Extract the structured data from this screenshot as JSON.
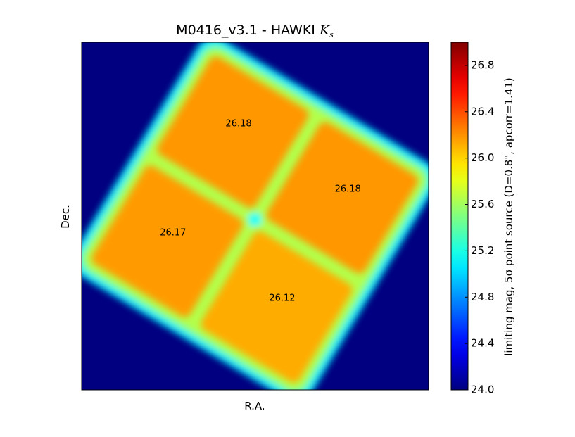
{
  "chart_data": {
    "type": "heatmap",
    "title": "M0416_v3.1 - HAWKI",
    "title_symbol": "K",
    "title_subscript": "s",
    "x_label": "R.A.",
    "y_label": "Dec.",
    "colorbar_label": "limiting mag, 5σ point source (D=0.8\", apcorr=1.41)",
    "colormap": "jet",
    "clim": [
      24.0,
      27.0
    ],
    "cticks": [
      {
        "value": 24.0,
        "label": "24.0"
      },
      24.4,
      24.8,
      25.2,
      25.6,
      {
        "value": 26.0,
        "label": "26.0"
      },
      26.4,
      26.8
    ],
    "chips": {
      "values": [
        26.18,
        26.18,
        26.17,
        26.12
      ]
    }
  }
}
